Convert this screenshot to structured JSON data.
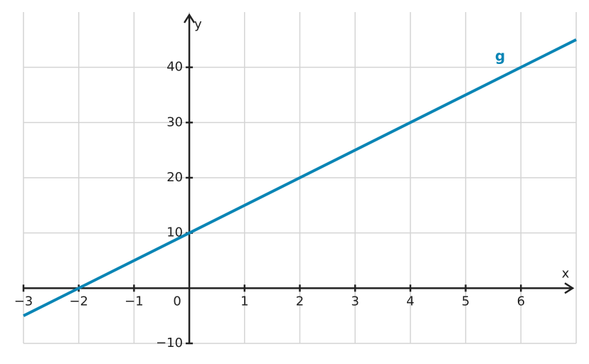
{
  "chart_data": {
    "type": "line",
    "x_label": "x",
    "y_label": "y",
    "x": [
      -3,
      7
    ],
    "series": [
      {
        "name": "g",
        "color": "#0a85b5",
        "values": [
          -5,
          45
        ]
      }
    ],
    "xlim": [
      -3,
      7
    ],
    "ylim": [
      -10,
      50
    ],
    "xticks": [
      {
        "value": -3,
        "label": "−3"
      },
      {
        "value": -2,
        "label": "−2"
      },
      {
        "value": -1,
        "label": "−1"
      },
      0,
      1,
      2,
      3,
      4,
      5,
      6
    ],
    "yticks": [
      {
        "value": -10,
        "label": "−10"
      },
      10,
      20,
      30,
      40
    ],
    "grid": true
  }
}
